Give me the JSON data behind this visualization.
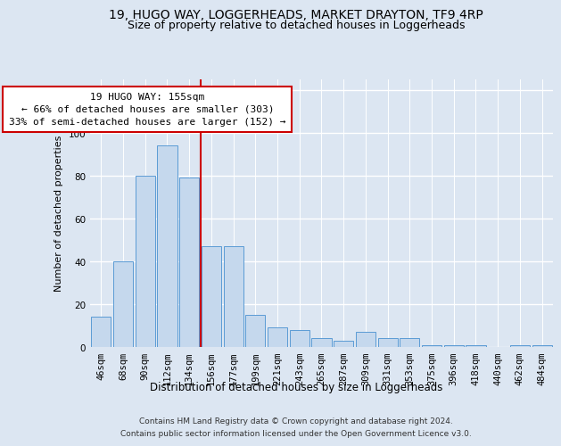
{
  "title1": "19, HUGO WAY, LOGGERHEADS, MARKET DRAYTON, TF9 4RP",
  "title2": "Size of property relative to detached houses in Loggerheads",
  "xlabel": "Distribution of detached houses by size in Loggerheads",
  "ylabel": "Number of detached properties",
  "categories": [
    "46sqm",
    "68sqm",
    "90sqm",
    "112sqm",
    "134sqm",
    "156sqm",
    "177sqm",
    "199sqm",
    "221sqm",
    "243sqm",
    "265sqm",
    "287sqm",
    "309sqm",
    "331sqm",
    "353sqm",
    "375sqm",
    "396sqm",
    "418sqm",
    "440sqm",
    "462sqm",
    "484sqm"
  ],
  "values": [
    14,
    40,
    80,
    94,
    79,
    47,
    47,
    15,
    9,
    8,
    4,
    3,
    7,
    4,
    4,
    1,
    1,
    1,
    0,
    1,
    1
  ],
  "bar_color": "#c5d8ed",
  "bar_edge_color": "#5b9bd5",
  "red_line_x": 4.5,
  "annotation_text": "19 HUGO WAY: 155sqm\n← 66% of detached houses are smaller (303)\n33% of semi-detached houses are larger (152) →",
  "annotation_box_color": "#ffffff",
  "annotation_box_edge": "#cc0000",
  "footer_text": "Contains HM Land Registry data © Crown copyright and database right 2024.\nContains public sector information licensed under the Open Government Licence v3.0.",
  "ylim": [
    0,
    125
  ],
  "yticks": [
    0,
    20,
    40,
    60,
    80,
    100,
    120
  ],
  "bg_color": "#dce6f2",
  "plot_bg": "#dce6f2",
  "grid_color": "#ffffff",
  "title1_fontsize": 10,
  "title2_fontsize": 9,
  "xlabel_fontsize": 8.5,
  "ylabel_fontsize": 8,
  "tick_fontsize": 7.5,
  "annotation_fontsize": 8,
  "footer_fontsize": 6.5
}
